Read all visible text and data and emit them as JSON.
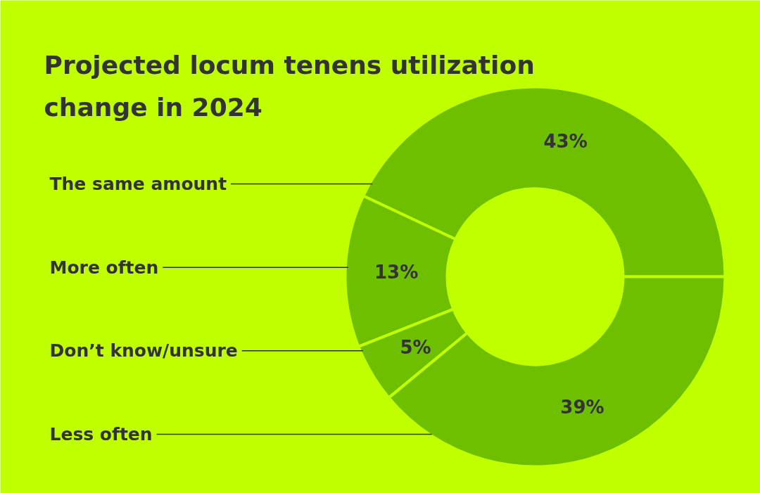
{
  "chart_data": {
    "type": "donut",
    "title": "Projected locum tenens utilization\nchange in 2024",
    "categories": [
      "The same amount",
      "More often",
      "Don’t know/unsure",
      "Less often"
    ],
    "values": [
      43,
      13,
      5,
      39
    ],
    "colors": [
      "#6dbf00",
      "#6dbf00",
      "#6dbf00",
      "#6dbf00"
    ],
    "value_labels": [
      "43%",
      "13%",
      "5%",
      "39%"
    ]
  }
}
